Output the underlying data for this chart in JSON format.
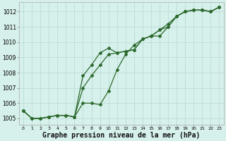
{
  "xlabel": "Graphe pression niveau de la mer (hPa)",
  "bg_color": "#d6f0eb",
  "grid_color": "#b8d8d0",
  "line_color": "#2d6a2d",
  "hours": [
    0,
    1,
    2,
    3,
    4,
    5,
    6,
    7,
    8,
    9,
    10,
    11,
    12,
    13,
    14,
    15,
    16,
    17,
    18,
    19,
    20,
    21,
    22,
    23
  ],
  "line1": [
    1005.5,
    1005.0,
    1005.0,
    1005.1,
    1005.2,
    1005.2,
    1005.1,
    1007.8,
    1008.5,
    1009.3,
    1009.6,
    1009.3,
    1009.4,
    1009.5,
    1010.2,
    1010.4,
    1010.4,
    1011.0,
    1011.7,
    1012.0,
    1012.1,
    1012.1,
    1012.0,
    1012.3
  ],
  "line2": [
    1005.5,
    1005.0,
    1005.0,
    1005.1,
    1005.2,
    1005.2,
    1005.1,
    1007.0,
    1007.8,
    1008.5,
    1009.2,
    1009.3,
    1009.4,
    1009.5,
    1010.2,
    1010.4,
    1010.8,
    1011.2,
    1011.7,
    1012.0,
    1012.1,
    1012.1,
    1012.0,
    1012.3
  ],
  "line3": [
    1005.5,
    1005.0,
    1005.0,
    1005.1,
    1005.2,
    1005.2,
    1005.1,
    1006.0,
    1006.0,
    1005.9,
    1006.8,
    1008.2,
    1009.2,
    1009.8,
    1010.2,
    1010.4,
    1010.8,
    1011.0,
    1011.7,
    1012.0,
    1012.1,
    1012.1,
    1012.0,
    1012.3
  ],
  "ylim": [
    1004.6,
    1012.6
  ],
  "yticks": [
    1005,
    1006,
    1007,
    1008,
    1009,
    1010,
    1011,
    1012
  ],
  "xticks": [
    0,
    1,
    2,
    3,
    4,
    5,
    6,
    7,
    8,
    9,
    10,
    11,
    12,
    13,
    14,
    15,
    16,
    17,
    18,
    19,
    20,
    21,
    22,
    23
  ],
  "marker": "D",
  "marker_size": 2.0,
  "line_width": 0.9,
  "xlabel_fontsize": 7,
  "tick_fontsize": 5.5
}
